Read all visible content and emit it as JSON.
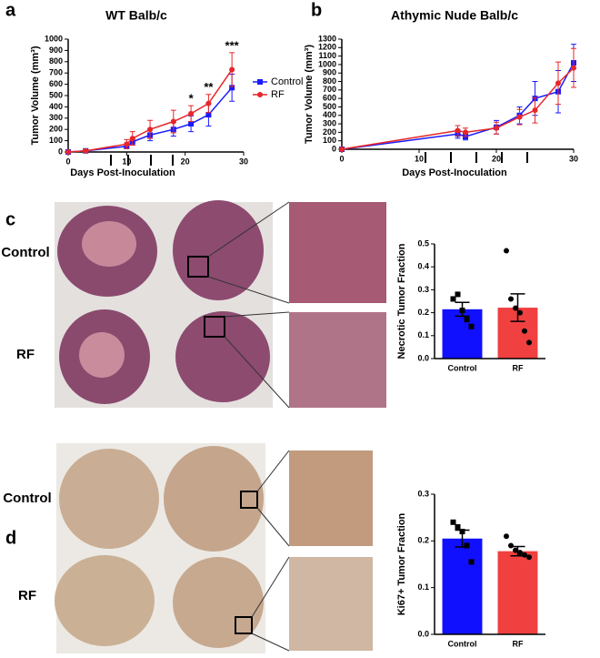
{
  "figure": {
    "panel_labels": [
      "a",
      "b",
      "c",
      "d"
    ],
    "row_labels_c": [
      "Control",
      "RF"
    ],
    "row_labels_d": [
      "Control",
      "RF"
    ]
  },
  "chart_data": [
    {
      "type": "line",
      "title": "WT Balb/c",
      "x_label": "Days Post-Inoculation",
      "y_label": "Tumor Volume (mm³)",
      "x": [
        0,
        3,
        10,
        11,
        14,
        18,
        21,
        24,
        28
      ],
      "series": [
        {
          "name": "Control",
          "color": "#1a1aff",
          "marker": "square",
          "values": [
            0,
            10,
            50,
            90,
            150,
            200,
            250,
            330,
            570
          ],
          "errors": [
            5,
            8,
            20,
            30,
            50,
            60,
            70,
            100,
            120
          ]
        },
        {
          "name": "RF",
          "color": "#e8262a",
          "marker": "circle",
          "values": [
            0,
            10,
            70,
            120,
            200,
            270,
            340,
            430,
            730
          ],
          "errors": [
            5,
            10,
            40,
            60,
            80,
            100,
            70,
            80,
            150
          ]
        }
      ],
      "annotations": [
        {
          "text": "*",
          "x": 21
        },
        {
          "text": "**",
          "x": 24
        },
        {
          "text": "***",
          "x": 28
        }
      ],
      "xlim": [
        0,
        30
      ],
      "xticks": [
        0,
        10,
        20,
        30
      ],
      "ylim": [
        0,
        1000
      ],
      "yticks": [
        0,
        100,
        200,
        300,
        400,
        500,
        600,
        700,
        800,
        900,
        1000
      ],
      "legend": "right"
    },
    {
      "type": "line",
      "title": "Athymic Nude Balb/c",
      "x_label": "Days Post-Inoculation",
      "y_label": "Tumor Volume (mm³)",
      "x": [
        0,
        15,
        16,
        20,
        23,
        25,
        28,
        30
      ],
      "series": [
        {
          "color": "#1a1aff",
          "marker": "square",
          "values": [
            0,
            180,
            150,
            260,
            400,
            600,
            680,
            1020
          ],
          "errors": [
            5,
            50,
            40,
            80,
            100,
            200,
            250,
            220
          ]
        },
        {
          "color": "#e8262a",
          "marker": "circle",
          "values": [
            0,
            220,
            200,
            250,
            380,
            460,
            780,
            960
          ],
          "errors": [
            5,
            60,
            50,
            70,
            90,
            150,
            250,
            230
          ]
        }
      ],
      "xlim": [
        0,
        30
      ],
      "xticks": [
        0,
        10,
        20,
        30
      ],
      "ylim": [
        0,
        1300
      ],
      "yticks": [
        0,
        100,
        200,
        300,
        400,
        500,
        600,
        700,
        800,
        900,
        1000,
        1100,
        1200,
        1300
      ]
    },
    {
      "type": "bar",
      "y_label": "Necrotic Tumor Fraction",
      "categories": [
        "Control",
        "RF"
      ],
      "values": [
        0.215,
        0.222
      ],
      "errors": [
        0.03,
        0.06
      ],
      "colors": [
        "#1010ff",
        "#f04040"
      ],
      "point_shapes": [
        "square",
        "circle"
      ],
      "points": [
        [
          0.26,
          0.28,
          0.21,
          0.17,
          0.14
        ],
        [
          0.47,
          0.26,
          0.22,
          0.2,
          0.12,
          0.07
        ]
      ],
      "ylim": [
        0,
        0.5
      ],
      "yticks": [
        {
          "value": 0,
          "label": "0.0"
        },
        0.1,
        0.2,
        0.3,
        0.4,
        0.5
      ]
    },
    {
      "type": "bar",
      "y_label": "Ki67+ Tumor Fraction",
      "categories": [
        "Control",
        "RF"
      ],
      "values": [
        0.205,
        0.178
      ],
      "errors": [
        0.018,
        0.01
      ],
      "colors": [
        "#1010ff",
        "#f04040"
      ],
      "point_shapes": [
        "square",
        "circle"
      ],
      "points": [
        [
          0.24,
          0.23,
          0.22,
          0.19,
          0.155
        ],
        [
          0.21,
          0.19,
          0.18,
          0.175,
          0.17,
          0.165
        ]
      ],
      "ylim": [
        0,
        0.3
      ],
      "yticks": [
        {
          "value": 0,
          "label": "0.0"
        },
        0.1,
        0.2,
        0.3
      ]
    }
  ]
}
